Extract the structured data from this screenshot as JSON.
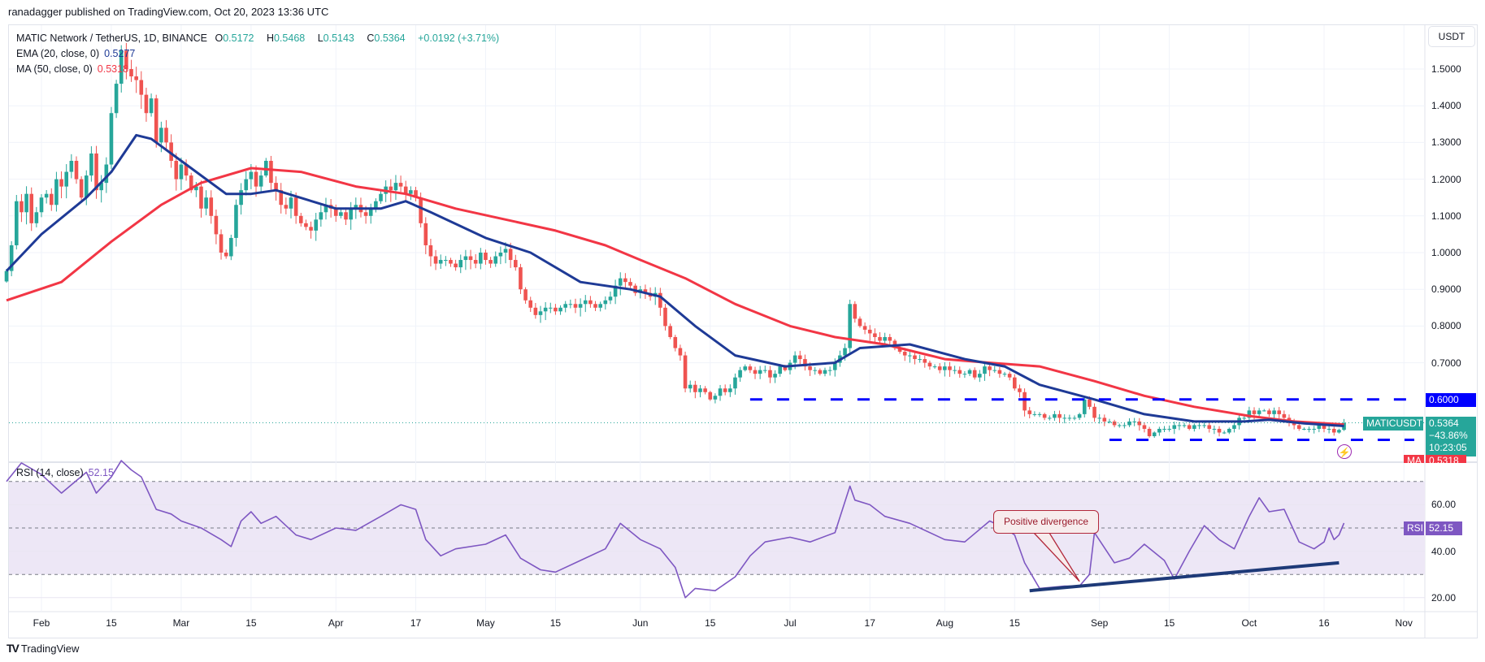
{
  "published": "ranadagger published on TradingView.com, Oct 20, 2023 13:36 UTC",
  "legend": {
    "symbol": "MATIC Network / TetherUS, 1D, BINANCE",
    "o_label": "O",
    "o": "0.5172",
    "h_label": "H",
    "h": "0.5468",
    "l_label": "L",
    "l": "0.5143",
    "c_label": "C",
    "c": "0.5364",
    "change": "+0.0192 (+3.71%)",
    "ema_label": "EMA (20, close, 0)",
    "ema_value": "0.5277",
    "ma_label": "MA (50, close, 0)",
    "ma_value": "0.5318",
    "rsi_label": "RSI (14, close)",
    "rsi_value": "52.15"
  },
  "price_axis": {
    "currency": "USDT",
    "ticks": [
      "1.5000",
      "1.4000",
      "1.3000",
      "1.2000",
      "1.1000",
      "1.0000",
      "0.9000",
      "0.8000",
      "0.7000"
    ],
    "level_label": "0.6000",
    "symbol_tag": "MATICUSDT",
    "last_price": "0.5364",
    "last_change": "−43.86%",
    "countdown": "10:23:05",
    "ma_tag": "MA",
    "ma_tag_value": "0.5318"
  },
  "rsi_axis": {
    "ticks": [
      "60.00",
      "40.00",
      "20.00"
    ],
    "tag": "RSI",
    "value": "52.15"
  },
  "time_axis": {
    "labels": [
      {
        "date": "2023-02-01",
        "text": "Feb"
      },
      {
        "date": "2023-02-15",
        "text": "15"
      },
      {
        "date": "2023-03-01",
        "text": "Mar"
      },
      {
        "date": "2023-03-15",
        "text": "15"
      },
      {
        "date": "2023-04-01",
        "text": "Apr"
      },
      {
        "date": "2023-04-17",
        "text": "17"
      },
      {
        "date": "2023-05-01",
        "text": "May"
      },
      {
        "date": "2023-05-15",
        "text": "15"
      },
      {
        "date": "2023-06-01",
        "text": "Jun"
      },
      {
        "date": "2023-06-15",
        "text": "15"
      },
      {
        "date": "2023-07-01",
        "text": "Jul"
      },
      {
        "date": "2023-07-17",
        "text": "17"
      },
      {
        "date": "2023-08-01",
        "text": "Aug"
      },
      {
        "date": "2023-08-15",
        "text": "15"
      },
      {
        "date": "2023-09-01",
        "text": "Sep"
      },
      {
        "date": "2023-09-15",
        "text": "15"
      },
      {
        "date": "2023-10-01",
        "text": "Oct"
      },
      {
        "date": "2023-10-16",
        "text": "16"
      },
      {
        "date": "2023-11-01",
        "text": "Nov"
      }
    ]
  },
  "annotation": {
    "text": "Positive divergence",
    "color": "#b2283a"
  },
  "footer": {
    "logo": "TradingView"
  },
  "colors": {
    "up": "#26a69a",
    "down": "#ef5350",
    "ema": "#1e3a96",
    "ma": "#f23645",
    "rsi": "#7e57c2",
    "levels": "#0000ff",
    "rsi_band": "#ede7f6"
  },
  "chart_data": {
    "type": "candlestick",
    "symbol": "MATICUSDT",
    "interval": "1D",
    "ylim": [
      0.45,
      1.6
    ],
    "last_candle": {
      "date": "2023-10-20",
      "open": 0.5172,
      "high": 0.5468,
      "low": 0.5143,
      "close": 0.5364
    },
    "daily_closes_by_month": {
      "2023-01-25": [
        0.95,
        1.02,
        1.14,
        1.11,
        1.16,
        1.08,
        1.11
      ],
      "2023-02-01": [
        1.15,
        1.16,
        1.13,
        1.2,
        1.18,
        1.22,
        1.25,
        1.2,
        1.15,
        1.21,
        1.27,
        1.17,
        1.19,
        1.24,
        1.38,
        1.46,
        1.55,
        1.5,
        1.48,
        1.47,
        1.43,
        1.38,
        1.42,
        1.3,
        1.34,
        1.3,
        1.25,
        1.2
      ],
      "2023-03-01": [
        1.24,
        1.21,
        1.17,
        1.18,
        1.12,
        1.15,
        1.1,
        1.05,
        1.0,
        0.99,
        1.04,
        1.13,
        1.17,
        1.2,
        1.22,
        1.18,
        1.21,
        1.25,
        1.19,
        1.17,
        1.13,
        1.12,
        1.15,
        1.1,
        1.08,
        1.07,
        1.06,
        1.09,
        1.11,
        1.13,
        1.12
      ],
      "2023-04-01": [
        1.1,
        1.11,
        1.09,
        1.12,
        1.13,
        1.11,
        1.1,
        1.12,
        1.14,
        1.16,
        1.18,
        1.17,
        1.19,
        1.18,
        1.16,
        1.17,
        1.15,
        1.08,
        1.02,
        0.99,
        0.97,
        0.98,
        0.98,
        0.97,
        0.96,
        0.98,
        0.99,
        0.98,
        0.97,
        1.0
      ],
      "2023-05-01": [
        0.98,
        0.97,
        0.99,
        1.0,
        1.01,
        0.98,
        0.96,
        0.9,
        0.87,
        0.85,
        0.83,
        0.84,
        0.85,
        0.85,
        0.84,
        0.85,
        0.86,
        0.86,
        0.85,
        0.86,
        0.87,
        0.86,
        0.85,
        0.86,
        0.87,
        0.88,
        0.91,
        0.93,
        0.92,
        0.91,
        0.89
      ],
      "2023-06-01": [
        0.9,
        0.89,
        0.88,
        0.89,
        0.85,
        0.8,
        0.77,
        0.74,
        0.72,
        0.63,
        0.64,
        0.62,
        0.63,
        0.62,
        0.6,
        0.61,
        0.63,
        0.62,
        0.63,
        0.66,
        0.68,
        0.69,
        0.68,
        0.67,
        0.68,
        0.68,
        0.66,
        0.67,
        0.69,
        0.68
      ],
      "2023-07-01": [
        0.7,
        0.72,
        0.71,
        0.69,
        0.68,
        0.68,
        0.67,
        0.68,
        0.68,
        0.7,
        0.72,
        0.74,
        0.86,
        0.82,
        0.8,
        0.79,
        0.78,
        0.77,
        0.76,
        0.77,
        0.76,
        0.74,
        0.73,
        0.72,
        0.72,
        0.71,
        0.71,
        0.7,
        0.69,
        0.69,
        0.68
      ],
      "2023-08-01": [
        0.69,
        0.68,
        0.68,
        0.67,
        0.67,
        0.68,
        0.66,
        0.67,
        0.69,
        0.68,
        0.68,
        0.67,
        0.67,
        0.66,
        0.63,
        0.62,
        0.57,
        0.56,
        0.56,
        0.56,
        0.55,
        0.55,
        0.56,
        0.55,
        0.55,
        0.55,
        0.55,
        0.56,
        0.6,
        0.58,
        0.55
      ],
      "2023-09-01": [
        0.55,
        0.54,
        0.54,
        0.53,
        0.53,
        0.53,
        0.54,
        0.54,
        0.53,
        0.52,
        0.5,
        0.51,
        0.52,
        0.52,
        0.52,
        0.53,
        0.53,
        0.53,
        0.52,
        0.53,
        0.53,
        0.53,
        0.52,
        0.52,
        0.51,
        0.51,
        0.52,
        0.53,
        0.55,
        0.55
      ],
      "2023-10-01": [
        0.57,
        0.56,
        0.57,
        0.57,
        0.56,
        0.57,
        0.56,
        0.55,
        0.54,
        0.53,
        0.52,
        0.52,
        0.52,
        0.52,
        0.53,
        0.52,
        0.52,
        0.51,
        0.5172,
        0.5364
      ]
    },
    "ema20": [
      [
        "2023-01-25",
        0.95
      ],
      [
        "2023-02-01",
        1.05
      ],
      [
        "2023-02-10",
        1.15
      ],
      [
        "2023-02-15",
        1.22
      ],
      [
        "2023-02-20",
        1.32
      ],
      [
        "2023-02-23",
        1.31
      ],
      [
        "2023-03-01",
        1.25
      ],
      [
        "2023-03-10",
        1.16
      ],
      [
        "2023-03-15",
        1.16
      ],
      [
        "2023-03-20",
        1.17
      ],
      [
        "2023-04-01",
        1.12
      ],
      [
        "2023-04-10",
        1.12
      ],
      [
        "2023-04-15",
        1.14
      ],
      [
        "2023-04-20",
        1.11
      ],
      [
        "2023-05-01",
        1.04
      ],
      [
        "2023-05-10",
        1.0
      ],
      [
        "2023-05-20",
        0.92
      ],
      [
        "2023-05-30",
        0.9
      ],
      [
        "2023-06-05",
        0.88
      ],
      [
        "2023-06-12",
        0.8
      ],
      [
        "2023-06-20",
        0.72
      ],
      [
        "2023-06-30",
        0.69
      ],
      [
        "2023-07-10",
        0.7
      ],
      [
        "2023-07-15",
        0.74
      ],
      [
        "2023-07-25",
        0.75
      ],
      [
        "2023-08-05",
        0.71
      ],
      [
        "2023-08-13",
        0.69
      ],
      [
        "2023-08-20",
        0.64
      ],
      [
        "2023-08-31",
        0.6
      ],
      [
        "2023-09-10",
        0.56
      ],
      [
        "2023-09-20",
        0.54
      ],
      [
        "2023-09-30",
        0.54
      ],
      [
        "2023-10-05",
        0.545
      ],
      [
        "2023-10-12",
        0.535
      ],
      [
        "2023-10-20",
        0.5277
      ]
    ],
    "ma50": [
      [
        "2023-01-25",
        0.87
      ],
      [
        "2023-02-05",
        0.92
      ],
      [
        "2023-02-15",
        1.03
      ],
      [
        "2023-02-25",
        1.13
      ],
      [
        "2023-03-05",
        1.19
      ],
      [
        "2023-03-15",
        1.23
      ],
      [
        "2023-03-25",
        1.22
      ],
      [
        "2023-04-05",
        1.18
      ],
      [
        "2023-04-15",
        1.16
      ],
      [
        "2023-04-25",
        1.12
      ],
      [
        "2023-05-05",
        1.09
      ],
      [
        "2023-05-15",
        1.06
      ],
      [
        "2023-05-25",
        1.02
      ],
      [
        "2023-06-01",
        0.98
      ],
      [
        "2023-06-10",
        0.93
      ],
      [
        "2023-06-20",
        0.86
      ],
      [
        "2023-07-01",
        0.8
      ],
      [
        "2023-07-10",
        0.77
      ],
      [
        "2023-07-20",
        0.75
      ],
      [
        "2023-08-01",
        0.71
      ],
      [
        "2023-08-10",
        0.7
      ],
      [
        "2023-08-20",
        0.69
      ],
      [
        "2023-08-31",
        0.65
      ],
      [
        "2023-09-10",
        0.61
      ],
      [
        "2023-09-20",
        0.58
      ],
      [
        "2023-10-01",
        0.555
      ],
      [
        "2023-10-10",
        0.54
      ],
      [
        "2023-10-20",
        0.5318
      ]
    ],
    "levels": [
      {
        "value": 0.6,
        "from": "2023-06-23"
      },
      {
        "value": 0.49,
        "from": "2023-09-03"
      }
    ],
    "rsi": {
      "ylim": [
        15,
        80
      ],
      "bands": [
        30,
        70
      ],
      "mid": 50,
      "values": [
        [
          "2023-01-25",
          70
        ],
        [
          "2023-01-28",
          78
        ],
        [
          "2023-02-01",
          73
        ],
        [
          "2023-02-05",
          65
        ],
        [
          "2023-02-10",
          74
        ],
        [
          "2023-02-12",
          65
        ],
        [
          "2023-02-15",
          72
        ],
        [
          "2023-02-17",
          79
        ],
        [
          "2023-02-19",
          75
        ],
        [
          "2023-02-21",
          72
        ],
        [
          "2023-02-24",
          58
        ],
        [
          "2023-02-27",
          56
        ],
        [
          "2023-03-01",
          53
        ],
        [
          "2023-03-05",
          50
        ],
        [
          "2023-03-09",
          45
        ],
        [
          "2023-03-11",
          42
        ],
        [
          "2023-03-13",
          53
        ],
        [
          "2023-03-15",
          57
        ],
        [
          "2023-03-17",
          52
        ],
        [
          "2023-03-20",
          55
        ],
        [
          "2023-03-24",
          47
        ],
        [
          "2023-03-27",
          45
        ],
        [
          "2023-04-01",
          50
        ],
        [
          "2023-04-05",
          49
        ],
        [
          "2023-04-10",
          55
        ],
        [
          "2023-04-14",
          60
        ],
        [
          "2023-04-17",
          58
        ],
        [
          "2023-04-19",
          45
        ],
        [
          "2023-04-22",
          38
        ],
        [
          "2023-04-25",
          41
        ],
        [
          "2023-05-01",
          43
        ],
        [
          "2023-05-05",
          47
        ],
        [
          "2023-05-08",
          37
        ],
        [
          "2023-05-12",
          32
        ],
        [
          "2023-05-15",
          31
        ],
        [
          "2023-05-20",
          36
        ],
        [
          "2023-05-25",
          41
        ],
        [
          "2023-05-28",
          52
        ],
        [
          "2023-06-01",
          45
        ],
        [
          "2023-06-05",
          41
        ],
        [
          "2023-06-08",
          33
        ],
        [
          "2023-06-10",
          20
        ],
        [
          "2023-06-12",
          24
        ],
        [
          "2023-06-16",
          23
        ],
        [
          "2023-06-20",
          29
        ],
        [
          "2023-06-23",
          38
        ],
        [
          "2023-06-26",
          44
        ],
        [
          "2023-07-01",
          46
        ],
        [
          "2023-07-05",
          44
        ],
        [
          "2023-07-10",
          48
        ],
        [
          "2023-07-13",
          68
        ],
        [
          "2023-07-14",
          62
        ],
        [
          "2023-07-17",
          60
        ],
        [
          "2023-07-20",
          55
        ],
        [
          "2023-07-25",
          52
        ],
        [
          "2023-08-01",
          45
        ],
        [
          "2023-08-05",
          44
        ],
        [
          "2023-08-10",
          53
        ],
        [
          "2023-08-13",
          50
        ],
        [
          "2023-08-15",
          47
        ],
        [
          "2023-08-17",
          35
        ],
        [
          "2023-08-20",
          24
        ],
        [
          "2023-08-25",
          25
        ],
        [
          "2023-08-28",
          25
        ],
        [
          "2023-08-30",
          30
        ],
        [
          "2023-08-31",
          48
        ],
        [
          "2023-09-04",
          35
        ],
        [
          "2023-09-07",
          37
        ],
        [
          "2023-09-10",
          43
        ],
        [
          "2023-09-14",
          36
        ],
        [
          "2023-09-16",
          28
        ],
        [
          "2023-09-19",
          40
        ],
        [
          "2023-09-22",
          51
        ],
        [
          "2023-09-25",
          45
        ],
        [
          "2023-09-28",
          41
        ],
        [
          "2023-10-01",
          55
        ],
        [
          "2023-10-03",
          63
        ],
        [
          "2023-10-05",
          57
        ],
        [
          "2023-10-08",
          58
        ],
        [
          "2023-10-11",
          44
        ],
        [
          "2023-10-14",
          41
        ],
        [
          "2023-10-16",
          44
        ],
        [
          "2023-10-17",
          50
        ],
        [
          "2023-10-18",
          45
        ],
        [
          "2023-10-19",
          47
        ],
        [
          "2023-10-20",
          52.15
        ]
      ],
      "trendline": [
        [
          "2023-08-18",
          23
        ],
        [
          "2023-10-19",
          35
        ]
      ],
      "callout_target": [
        "2023-08-28",
        27
      ]
    }
  }
}
